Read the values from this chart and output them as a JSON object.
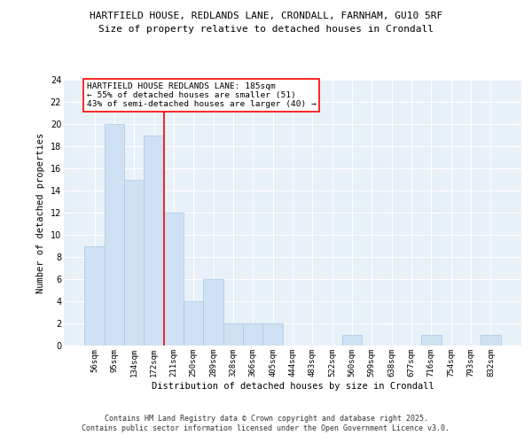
{
  "title1": "HARTFIELD HOUSE, REDLANDS LANE, CRONDALL, FARNHAM, GU10 5RF",
  "title2": "Size of property relative to detached houses in Crondall",
  "xlabel": "Distribution of detached houses by size in Crondall",
  "ylabel": "Number of detached properties",
  "categories": [
    "56sqm",
    "95sqm",
    "134sqm",
    "172sqm",
    "211sqm",
    "250sqm",
    "289sqm",
    "328sqm",
    "366sqm",
    "405sqm",
    "444sqm",
    "483sqm",
    "522sqm",
    "560sqm",
    "599sqm",
    "638sqm",
    "677sqm",
    "716sqm",
    "754sqm",
    "793sqm",
    "832sqm"
  ],
  "values": [
    9,
    20,
    15,
    19,
    12,
    4,
    6,
    2,
    2,
    2,
    0,
    0,
    0,
    1,
    0,
    0,
    0,
    1,
    0,
    0,
    1
  ],
  "bar_color": "#cfe2f3",
  "bar_edge_color": "#a8c8e8",
  "vline_color": "red",
  "vline_x": 3.5,
  "annotation_text": "HARTFIELD HOUSE REDLANDS LANE: 185sqm\n← 55% of detached houses are smaller (51)\n43% of semi-detached houses are larger (40) →",
  "annotation_box_color": "white",
  "annotation_box_edge_color": "red",
  "ylim": [
    0,
    24
  ],
  "yticks": [
    0,
    2,
    4,
    6,
    8,
    10,
    12,
    14,
    16,
    18,
    20,
    22,
    24
  ],
  "background_color": "#e8f0f8",
  "grid_color": "white",
  "footer1": "Contains HM Land Registry data © Crown copyright and database right 2025.",
  "footer2": "Contains public sector information licensed under the Open Government Licence v3.0."
}
